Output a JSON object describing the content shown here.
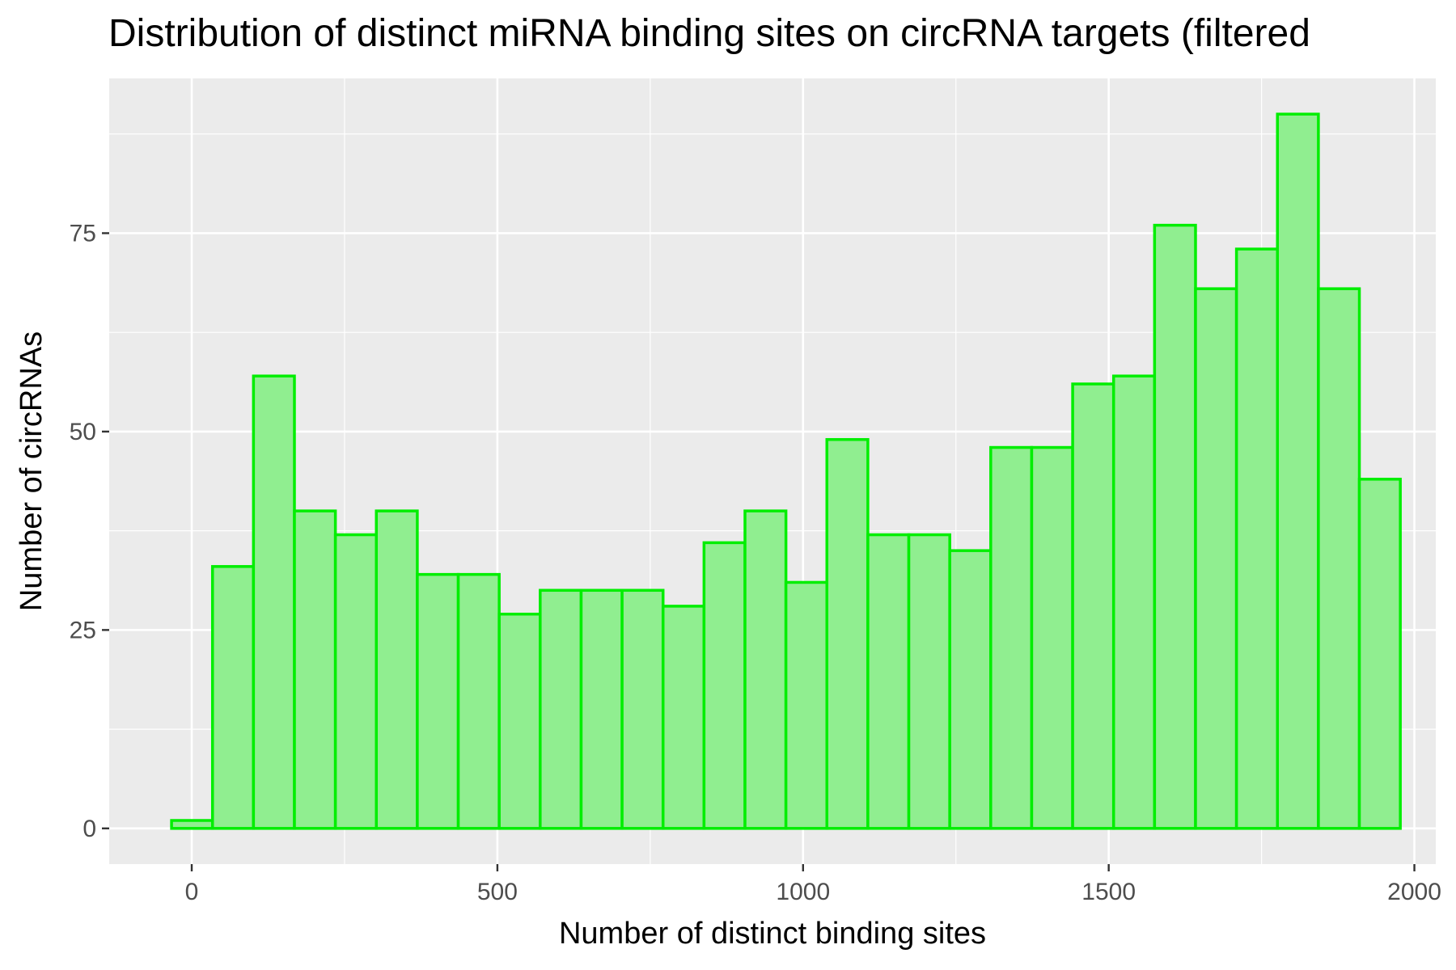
{
  "chart_data": {
    "type": "bar",
    "title": "Distribution of distinct miRNA binding sites on circRNA targets (filtered",
    "xlabel": "Number of distinct binding sites",
    "ylabel": "Number of circRNAs",
    "xlim": [
      -135,
      2035
    ],
    "ylim": [
      -4.5,
      94.5
    ],
    "x_ticks": [
      0,
      500,
      1000,
      1500,
      2000
    ],
    "y_ticks": [
      0,
      25,
      50,
      75
    ],
    "grid": true,
    "bin_width": 67,
    "bins": [
      {
        "x0": -33,
        "x1": 34,
        "count": 1
      },
      {
        "x0": 34,
        "x1": 101,
        "count": 33
      },
      {
        "x0": 101,
        "x1": 168,
        "count": 57
      },
      {
        "x0": 168,
        "x1": 235,
        "count": 40
      },
      {
        "x0": 235,
        "x1": 302,
        "count": 37
      },
      {
        "x0": 302,
        "x1": 369,
        "count": 40
      },
      {
        "x0": 369,
        "x1": 436,
        "count": 32
      },
      {
        "x0": 436,
        "x1": 503,
        "count": 32
      },
      {
        "x0": 503,
        "x1": 570,
        "count": 27
      },
      {
        "x0": 570,
        "x1": 637,
        "count": 30
      },
      {
        "x0": 637,
        "x1": 704,
        "count": 30
      },
      {
        "x0": 704,
        "x1": 771,
        "count": 30
      },
      {
        "x0": 771,
        "x1": 838,
        "count": 28
      },
      {
        "x0": 838,
        "x1": 905,
        "count": 36
      },
      {
        "x0": 905,
        "x1": 972,
        "count": 40
      },
      {
        "x0": 972,
        "x1": 1039,
        "count": 31
      },
      {
        "x0": 1039,
        "x1": 1106,
        "count": 49
      },
      {
        "x0": 1106,
        "x1": 1173,
        "count": 37
      },
      {
        "x0": 1173,
        "x1": 1240,
        "count": 37
      },
      {
        "x0": 1240,
        "x1": 1307,
        "count": 35
      },
      {
        "x0": 1307,
        "x1": 1374,
        "count": 48
      },
      {
        "x0": 1374,
        "x1": 1441,
        "count": 48
      },
      {
        "x0": 1441,
        "x1": 1508,
        "count": 56
      },
      {
        "x0": 1508,
        "x1": 1575,
        "count": 57
      },
      {
        "x0": 1575,
        "x1": 1642,
        "count": 76
      },
      {
        "x0": 1642,
        "x1": 1709,
        "count": 68
      },
      {
        "x0": 1709,
        "x1": 1776,
        "count": 73
      },
      {
        "x0": 1776,
        "x1": 1843,
        "count": 90
      },
      {
        "x0": 1843,
        "x1": 1910,
        "count": 68
      },
      {
        "x0": 1910,
        "x1": 1977,
        "count": 44
      }
    ],
    "colors": {
      "bar_fill": "#90ee90",
      "bar_stroke": "#00ee00",
      "panel_bg": "#ebebeb",
      "grid": "#ffffff"
    }
  }
}
